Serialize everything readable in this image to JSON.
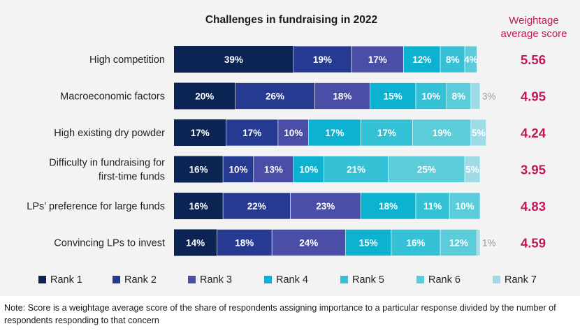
{
  "chart_data": {
    "type": "bar",
    "orientation": "horizontal",
    "stacked": true,
    "title": "Challenges in fundraising in 2022",
    "score_header": "Weightage average score",
    "categories": [
      "High competition",
      "Macroeconomic factors",
      "High existing dry powder",
      "Difficulty in fundraising for first-time funds",
      "LPs’ preference for large funds",
      "Convincing LPs to invest"
    ],
    "category_lines": [
      [
        "High competition"
      ],
      [
        "Macroeconomic factors"
      ],
      [
        "High existing dry powder"
      ],
      [
        "Difficulty in fundraising for",
        "first-time funds"
      ],
      [
        "LPs’ preference for large funds"
      ],
      [
        "Convincing LPs to invest"
      ]
    ],
    "series": [
      {
        "name": "Rank 1",
        "color": "#0b2454",
        "values": [
          39,
          20,
          17,
          16,
          16,
          14
        ]
      },
      {
        "name": "Rank 2",
        "color": "#273a92",
        "values": [
          19,
          26,
          17,
          10,
          22,
          18
        ]
      },
      {
        "name": "Rank 3",
        "color": "#4a4ea6",
        "values": [
          17,
          18,
          10,
          13,
          23,
          24
        ]
      },
      {
        "name": "Rank 4",
        "color": "#0cb2cf",
        "values": [
          12,
          15,
          17,
          10,
          18,
          15
        ]
      },
      {
        "name": "Rank 5",
        "color": "#34c1d6",
        "values": [
          8,
          10,
          17,
          21,
          11,
          16
        ]
      },
      {
        "name": "Rank 6",
        "color": "#5ccbda",
        "values": [
          4,
          8,
          19,
          25,
          10,
          12
        ]
      },
      {
        "name": "Rank 7",
        "color": "#9ddbe7",
        "values": [
          0,
          3,
          5,
          5,
          0,
          1
        ]
      }
    ],
    "scores": [
      "5.56",
      "4.95",
      "4.24",
      "3.95",
      "4.83",
      "4.59"
    ],
    "xlim": [
      0,
      100
    ],
    "grid": false,
    "legend": "bottom"
  },
  "note": "Note: Score is a weightage average score of the share of respondents assigning importance to a particular response divided by the number of respondents responding to that concern"
}
